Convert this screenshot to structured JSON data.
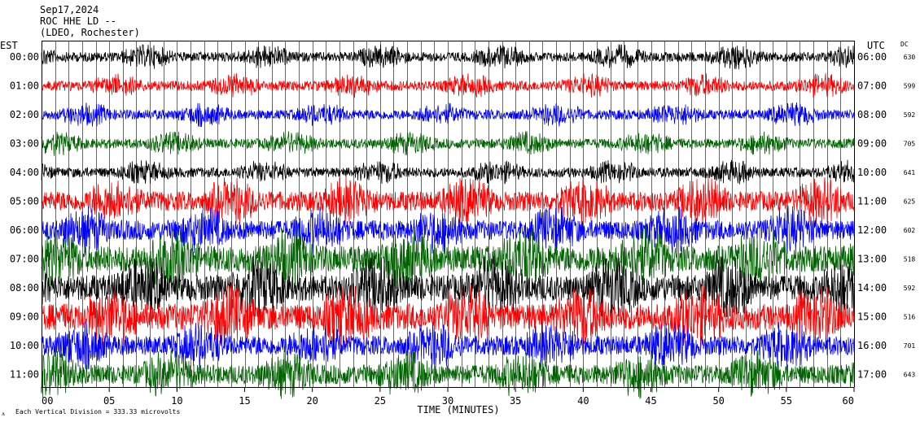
{
  "header": {
    "date": "Sep17,2024",
    "station": "ROC HHE LD --",
    "location": "(LDEO, Rochester)"
  },
  "left_axis_title": "EST",
  "right_axis_title": "UTC",
  "dc_title": "DC",
  "footer": {
    "logo_mark": "ᴧ",
    "scale_note": "Each Vertical Division = 333.33 microvolts"
  },
  "chart_data": {
    "type": "line",
    "title": "",
    "xlabel": "TIME (MINUTES)",
    "ylabel": "",
    "xlim": [
      0,
      60
    ],
    "x_ticks": [
      "00",
      "05",
      "10",
      "15",
      "20",
      "25",
      "30",
      "35",
      "40",
      "45",
      "50",
      "55",
      "60"
    ],
    "trace_colors": [
      "#000000",
      "#ff0000",
      "#0000ff",
      "#006400"
    ],
    "rows": [
      {
        "est": "00:00",
        "utc": "06:00",
        "dc": "630",
        "color": "#000000"
      },
      {
        "est": "01:00",
        "utc": "07:00",
        "dc": "599",
        "color": "#ff0000"
      },
      {
        "est": "02:00",
        "utc": "08:00",
        "dc": "592",
        "color": "#0000ff"
      },
      {
        "est": "03:00",
        "utc": "09:00",
        "dc": "705",
        "color": "#006400"
      },
      {
        "est": "04:00",
        "utc": "10:00",
        "dc": "641",
        "color": "#000000"
      },
      {
        "est": "05:00",
        "utc": "11:00",
        "dc": "625",
        "color": "#ff0000"
      },
      {
        "est": "06:00",
        "utc": "12:00",
        "dc": "602",
        "color": "#0000ff"
      },
      {
        "est": "07:00",
        "utc": "13:00",
        "dc": "518",
        "color": "#006400"
      },
      {
        "est": "08:00",
        "utc": "14:00",
        "dc": "592",
        "color": "#000000"
      },
      {
        "est": "09:00",
        "utc": "15:00",
        "dc": "516",
        "color": "#ff0000"
      },
      {
        "est": "10:00",
        "utc": "16:00",
        "dc": "701",
        "color": "#0000ff"
      },
      {
        "est": "11:00",
        "utc": "17:00",
        "dc": "643",
        "color": "#006400"
      }
    ]
  }
}
